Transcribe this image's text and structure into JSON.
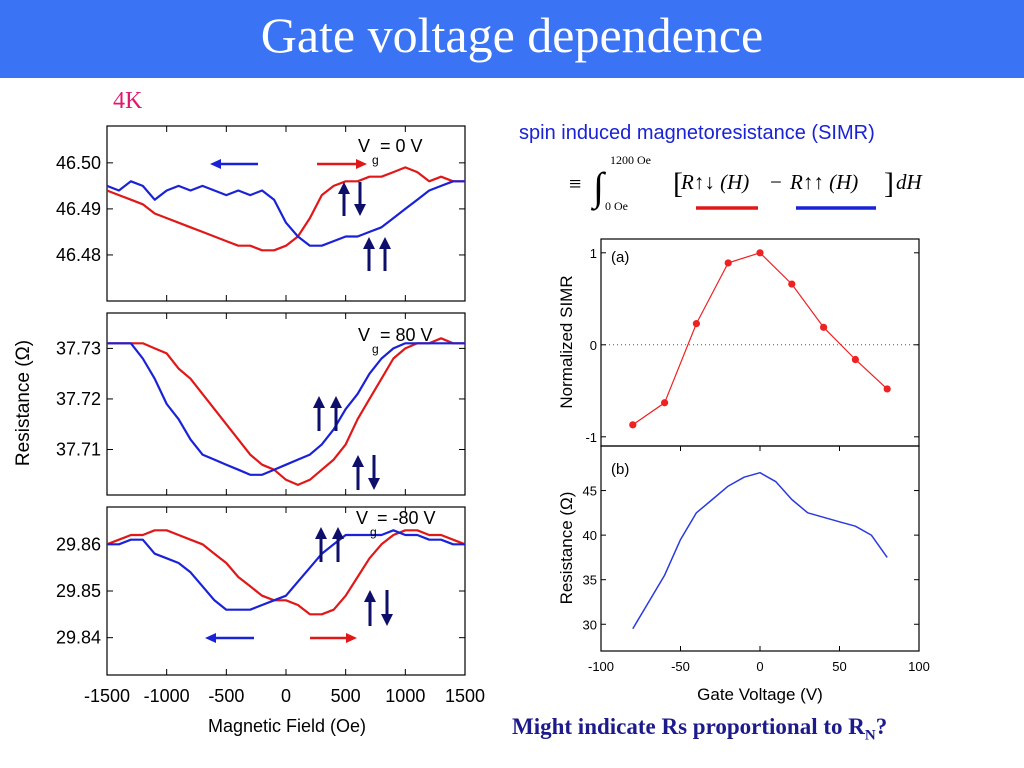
{
  "title": "Gate voltage dependence",
  "temperature_label": "4K",
  "formula": {
    "heading": "spin induced magnetoresistance (SIMR)",
    "equiv": "≡",
    "integral": "∫",
    "upper_limit": "1200 Oe",
    "lower_limit": "0 Oe",
    "left_term": "R↑↓ (H)",
    "minus": "−",
    "right_term": "R↑↑ (H)",
    "differential": "dH",
    "colors": {
      "left_underline": "#e01818",
      "right_underline": "#1a22d8"
    }
  },
  "conclusion": {
    "text": "Might indicate Rs proportional to R",
    "subscript": "N",
    "suffix": "?"
  },
  "colors": {
    "red": "#e01818",
    "blue": "#1a22d8",
    "marker": "#ee2222",
    "line_b": "#2a3ae0"
  },
  "chart_data": [
    {
      "type": "line",
      "panel": "Vg = 0 V",
      "label": "V",
      "label_sub": "g",
      "label_value": " = 0 V",
      "x_ticks": [
        -1500,
        -1000,
        -500,
        0,
        500,
        1000,
        1500
      ],
      "y_ticks": [
        46.48,
        46.49,
        46.5
      ],
      "y_tick_labels": [
        "46.48",
        "46.49",
        "46.50"
      ],
      "ylim": [
        46.47,
        46.508
      ],
      "series": [
        {
          "color": "red",
          "x": [
            -1500,
            -1400,
            -1300,
            -1200,
            -1100,
            -1000,
            -900,
            -800,
            -700,
            -600,
            -500,
            -400,
            -300,
            -200,
            -100,
            0,
            100,
            200,
            300,
            400,
            500,
            600,
            700,
            800,
            900,
            1000,
            1100,
            1200,
            1300,
            1400,
            1500
          ],
          "y": [
            46.494,
            46.493,
            46.492,
            46.491,
            46.489,
            46.488,
            46.487,
            46.486,
            46.485,
            46.484,
            46.483,
            46.482,
            46.482,
            46.481,
            46.481,
            46.482,
            46.484,
            46.488,
            46.493,
            46.495,
            46.496,
            46.496,
            46.497,
            46.497,
            46.498,
            46.499,
            46.498,
            46.496,
            46.497,
            46.496,
            46.496
          ]
        },
        {
          "color": "blue",
          "x": [
            -1500,
            -1400,
            -1300,
            -1200,
            -1100,
            -1000,
            -900,
            -800,
            -700,
            -600,
            -500,
            -400,
            -300,
            -200,
            -100,
            0,
            100,
            200,
            300,
            400,
            500,
            600,
            700,
            800,
            900,
            1000,
            1100,
            1200,
            1300,
            1400,
            1500
          ],
          "y": [
            46.495,
            46.494,
            46.496,
            46.495,
            46.492,
            46.494,
            46.495,
            46.494,
            46.495,
            46.494,
            46.493,
            46.494,
            46.493,
            46.494,
            46.492,
            46.487,
            46.484,
            46.482,
            46.482,
            46.483,
            46.484,
            46.484,
            46.485,
            46.486,
            46.488,
            46.49,
            46.492,
            46.494,
            46.495,
            46.496,
            46.496
          ]
        }
      ]
    },
    {
      "type": "line",
      "panel": "Vg = 80 V",
      "label": "V",
      "label_sub": "g",
      "label_value": " = 80 V",
      "x_ticks": [
        -1500,
        -1000,
        -500,
        0,
        500,
        1000,
        1500
      ],
      "y_ticks": [
        37.71,
        37.72,
        37.73
      ],
      "y_tick_labels": [
        "37.71",
        "37.72",
        "37.73"
      ],
      "ylim": [
        37.701,
        37.737
      ],
      "series": [
        {
          "color": "red",
          "x": [
            -1500,
            -1400,
            -1300,
            -1200,
            -1100,
            -1000,
            -900,
            -800,
            -700,
            -600,
            -500,
            -400,
            -300,
            -200,
            -100,
            0,
            100,
            200,
            300,
            400,
            500,
            600,
            700,
            800,
            900,
            1000,
            1100,
            1200,
            1300,
            1400,
            1500
          ],
          "y": [
            37.731,
            37.731,
            37.731,
            37.731,
            37.73,
            37.729,
            37.726,
            37.724,
            37.721,
            37.718,
            37.715,
            37.712,
            37.709,
            37.707,
            37.706,
            37.704,
            37.703,
            37.704,
            37.706,
            37.708,
            37.711,
            37.716,
            37.72,
            37.724,
            37.728,
            37.73,
            37.731,
            37.731,
            37.732,
            37.731,
            37.731
          ]
        },
        {
          "color": "blue",
          "x": [
            -1500,
            -1400,
            -1300,
            -1200,
            -1100,
            -1000,
            -900,
            -800,
            -700,
            -600,
            -500,
            -400,
            -300,
            -200,
            -100,
            0,
            100,
            200,
            300,
            400,
            500,
            600,
            700,
            800,
            900,
            1000,
            1100,
            1200,
            1300,
            1400,
            1500
          ],
          "y": [
            37.731,
            37.731,
            37.731,
            37.728,
            37.724,
            37.719,
            37.716,
            37.712,
            37.709,
            37.708,
            37.707,
            37.706,
            37.705,
            37.705,
            37.706,
            37.707,
            37.708,
            37.709,
            37.711,
            37.714,
            37.718,
            37.721,
            37.725,
            37.728,
            37.73,
            37.731,
            37.731,
            37.731,
            37.731,
            37.731,
            37.731
          ]
        }
      ]
    },
    {
      "type": "line",
      "panel": "Vg = -80 V",
      "label": "V",
      "label_sub": "g",
      "label_value": " = -80 V",
      "x_ticks": [
        -1500,
        -1000,
        -500,
        0,
        500,
        1000,
        1500
      ],
      "x_tick_labels": [
        "-1500",
        "-1000",
        "-500",
        "0",
        "500",
        "1000",
        "1500"
      ],
      "xlabel": "Magnetic Field (Oe)",
      "y_ticks": [
        29.84,
        29.85,
        29.86
      ],
      "y_tick_labels": [
        "29.84",
        "29.85",
        "29.86"
      ],
      "ylim": [
        29.832,
        29.868
      ],
      "series": [
        {
          "color": "red",
          "x": [
            -1500,
            -1400,
            -1300,
            -1200,
            -1100,
            -1000,
            -900,
            -800,
            -700,
            -600,
            -500,
            -400,
            -300,
            -200,
            -100,
            0,
            100,
            200,
            300,
            400,
            500,
            600,
            700,
            800,
            900,
            1000,
            1100,
            1200,
            1300,
            1400,
            1500
          ],
          "y": [
            29.86,
            29.861,
            29.862,
            29.862,
            29.863,
            29.863,
            29.862,
            29.861,
            29.86,
            29.858,
            29.856,
            29.853,
            29.851,
            29.849,
            29.848,
            29.848,
            29.847,
            29.845,
            29.845,
            29.846,
            29.849,
            29.853,
            29.857,
            29.86,
            29.862,
            29.863,
            29.863,
            29.862,
            29.862,
            29.861,
            29.86
          ]
        },
        {
          "color": "blue",
          "x": [
            -1500,
            -1400,
            -1300,
            -1200,
            -1100,
            -1000,
            -900,
            -800,
            -700,
            -600,
            -500,
            -400,
            -300,
            -200,
            -100,
            0,
            100,
            200,
            300,
            400,
            500,
            600,
            700,
            800,
            900,
            1000,
            1100,
            1200,
            1300,
            1400,
            1500
          ],
          "y": [
            29.86,
            29.86,
            29.861,
            29.861,
            29.858,
            29.857,
            29.856,
            29.854,
            29.851,
            29.848,
            29.846,
            29.846,
            29.846,
            29.847,
            29.848,
            29.849,
            29.852,
            29.855,
            29.858,
            29.86,
            29.862,
            29.862,
            29.862,
            29.862,
            29.863,
            29.862,
            29.862,
            29.861,
            29.861,
            29.86,
            29.86
          ]
        }
      ]
    },
    {
      "type": "scatter",
      "panel": "(a)",
      "ylabel": "Normalized SIMR",
      "x": [
        -80,
        -60,
        -40,
        -20,
        0,
        20,
        40,
        60,
        80
      ],
      "y": [
        -0.87,
        -0.63,
        0.23,
        0.89,
        1.0,
        0.66,
        0.19,
        -0.16,
        -0.48
      ],
      "xlim": [
        -100,
        100
      ],
      "ylim": [
        -1.1,
        1.15
      ],
      "y_ticks": [
        -1,
        0,
        1
      ],
      "y_tick_labels": [
        "-1",
        "0",
        "1"
      ],
      "reference_line": 0
    },
    {
      "type": "line",
      "panel": "(b)",
      "ylabel": "Resistance (Ω)",
      "xlabel": "Gate Voltage (V)",
      "x": [
        -80,
        -70,
        -60,
        -50,
        -40,
        -30,
        -20,
        -10,
        0,
        10,
        20,
        30,
        40,
        50,
        60,
        70,
        80
      ],
      "y": [
        29.5,
        32.5,
        35.5,
        39.5,
        42.5,
        44.0,
        45.5,
        46.5,
        47.0,
        46.0,
        44.0,
        42.5,
        42.0,
        41.5,
        41.0,
        40.0,
        37.5
      ],
      "xlim": [
        -100,
        100
      ],
      "ylim": [
        27.0,
        50.0
      ],
      "x_ticks": [
        -100,
        -50,
        0,
        50,
        100
      ],
      "x_tick_labels": [
        "-100",
        "-50",
        "0",
        "50",
        "100"
      ],
      "y_ticks": [
        30,
        35,
        40,
        45
      ],
      "y_tick_labels": [
        "30",
        "35",
        "40",
        "45"
      ]
    }
  ],
  "left_ylabel": "Resistance (Ω)"
}
